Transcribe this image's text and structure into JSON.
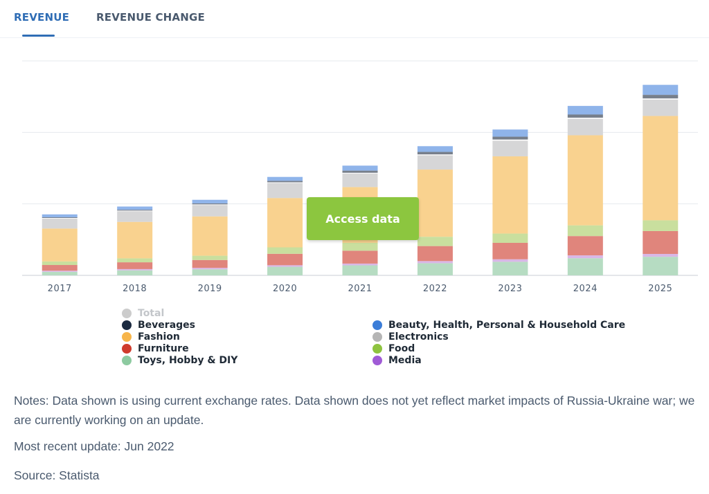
{
  "tabs": [
    {
      "label": "REVENUE",
      "active": true
    },
    {
      "label": "REVENUE CHANGE",
      "active": false
    }
  ],
  "access_button": {
    "label": "Access data",
    "color": "#8cc63f"
  },
  "chart_data": {
    "type": "bar",
    "stacked": true,
    "categories": [
      "2017",
      "2018",
      "2019",
      "2020",
      "2021",
      "2022",
      "2023",
      "2024",
      "2025"
    ],
    "ylim": [
      0,
      3000
    ],
    "y_tick_values": [
      0,
      1000,
      2000,
      3000
    ],
    "y_tick_labels_visible": false,
    "grid": true,
    "series": [
      {
        "name": "Toys, Hobby & DIY",
        "color": "#b6dcc2",
        "values": [
          50,
          70,
          85,
          120,
          140,
          170,
          190,
          240,
          260
        ]
      },
      {
        "name": "Media",
        "color": "#d9b7e6",
        "values": [
          15,
          18,
          20,
          22,
          25,
          30,
          35,
          40,
          40
        ]
      },
      {
        "name": "Furniture",
        "color": "#e0857c",
        "values": [
          80,
          95,
          110,
          160,
          180,
          210,
          230,
          270,
          320
        ]
      },
      {
        "name": "Food",
        "color": "#c9df9e",
        "values": [
          50,
          55,
          60,
          90,
          110,
          130,
          130,
          150,
          150
        ]
      },
      {
        "name": "Fashion",
        "color": "#f9d28f",
        "values": [
          460,
          510,
          550,
          690,
          780,
          940,
          1080,
          1260,
          1460
        ]
      },
      {
        "name": "Total",
        "color": "#d6d6d7",
        "values": [
          140,
          150,
          160,
          210,
          190,
          200,
          220,
          230,
          230
        ]
      },
      {
        "name": "Electronics",
        "color": "#ffffff",
        "values": [
          8,
          8,
          8,
          10,
          10,
          12,
          15,
          15,
          15
        ]
      },
      {
        "name": "Beverages",
        "color": "#777f8b",
        "values": [
          10,
          12,
          14,
          20,
          30,
          35,
          40,
          45,
          50
        ]
      },
      {
        "name": "Beauty, Health, Personal & Household Care",
        "color": "#8fb4ea",
        "values": [
          40,
          45,
          50,
          55,
          70,
          80,
          100,
          120,
          140
        ]
      }
    ],
    "legend": {
      "placement": "bottom",
      "items": [
        {
          "name": "Total",
          "color": "#cccccc",
          "muted": true
        },
        {
          "name": "Beauty, Health, Personal & Household Care",
          "color": "#3b7dd8",
          "muted": false
        },
        {
          "name": "Beverages",
          "color": "#1b2a40",
          "muted": false
        },
        {
          "name": "Electronics",
          "color": "#b5b5b5",
          "muted": false
        },
        {
          "name": "Fashion",
          "color": "#f7b54a",
          "muted": false
        },
        {
          "name": "Food",
          "color": "#8ec33f",
          "muted": false
        },
        {
          "name": "Furniture",
          "color": "#cf3b2c",
          "muted": false
        },
        {
          "name": "Media",
          "color": "#a05bd6",
          "muted": false
        },
        {
          "name": "Toys, Hobby & DIY",
          "color": "#8dcaa0",
          "muted": false
        }
      ]
    }
  },
  "notes": "Notes: Data shown is using current exchange rates. Data shown does not yet reflect market impacts of Russia-Ukraine war; we are currently working on an update.",
  "update": "Most recent update: Jun 2022",
  "source": "Source: Statista"
}
